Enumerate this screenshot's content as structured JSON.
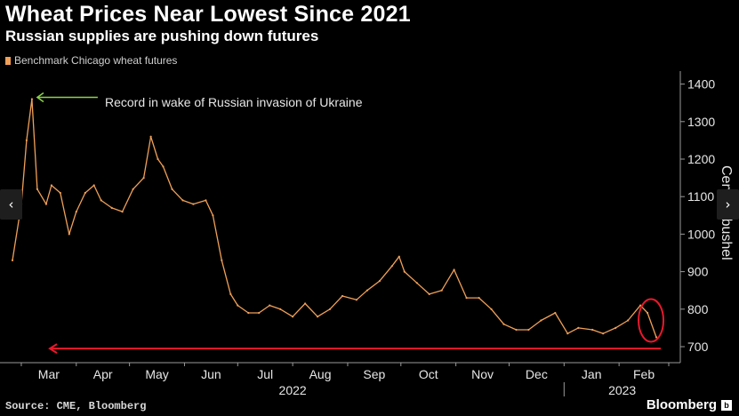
{
  "header": {
    "title": "Wheat Prices Near Lowest Since 2021",
    "subtitle": "Russian supplies are pushing down futures"
  },
  "legend": {
    "label": "Benchmark Chicago wheat futures",
    "color": "#f0a058"
  },
  "annotation": {
    "text": "Record in wake of Russian invasion of Ukraine",
    "arrow_color": "#8bd34a"
  },
  "highlight": {
    "color": "#e8192c"
  },
  "nav": {
    "prev_icon": "‹",
    "next_icon": "›"
  },
  "footer": {
    "source": "Source: CME, Bloomberg",
    "logo": "Bloomberg"
  },
  "chart_data": {
    "type": "line",
    "title": "Wheat Prices Near Lowest Since 2021",
    "subtitle": "Russian supplies are pushing down futures",
    "ylabel": "Cents a bushel",
    "ylim": [
      650,
      1430
    ],
    "y_ticks": [
      700,
      800,
      900,
      1000,
      1100,
      1200,
      1300,
      1400
    ],
    "x_ticks": [
      "Mar",
      "Apr",
      "May",
      "Jun",
      "Jul",
      "Aug",
      "Sep",
      "Oct",
      "Nov",
      "Dec",
      "Jan",
      "Feb"
    ],
    "year_labels": [
      "2022",
      "2023"
    ],
    "grid": false,
    "legend_position": "top-left",
    "series": [
      {
        "name": "Benchmark Chicago wheat futures",
        "color": "#f0a058",
        "x": [
          "2022-02-24",
          "2022-03-01",
          "2022-03-04",
          "2022-03-07",
          "2022-03-10",
          "2022-03-15",
          "2022-03-18",
          "2022-03-23",
          "2022-03-28",
          "2022-04-01",
          "2022-04-06",
          "2022-04-11",
          "2022-04-15",
          "2022-04-21",
          "2022-04-27",
          "2022-05-03",
          "2022-05-09",
          "2022-05-13",
          "2022-05-17",
          "2022-05-20",
          "2022-05-25",
          "2022-05-31",
          "2022-06-06",
          "2022-06-13",
          "2022-06-17",
          "2022-06-22",
          "2022-06-27",
          "2022-07-01",
          "2022-07-07",
          "2022-07-13",
          "2022-07-19",
          "2022-07-25",
          "2022-08-01",
          "2022-08-08",
          "2022-08-15",
          "2022-08-22",
          "2022-08-29",
          "2022-09-06",
          "2022-09-12",
          "2022-09-19",
          "2022-09-26",
          "2022-09-30",
          "2022-10-03",
          "2022-10-10",
          "2022-10-17",
          "2022-10-24",
          "2022-10-31",
          "2022-11-07",
          "2022-11-14",
          "2022-11-21",
          "2022-11-28",
          "2022-12-05",
          "2022-12-12",
          "2022-12-19",
          "2022-12-27",
          "2023-01-03",
          "2023-01-09",
          "2023-01-17",
          "2023-01-23",
          "2023-01-30",
          "2023-02-06",
          "2023-02-13",
          "2023-02-17",
          "2023-02-22"
        ],
        "values": [
          930,
          1080,
          1250,
          1360,
          1120,
          1080,
          1130,
          1110,
          1000,
          1060,
          1110,
          1130,
          1090,
          1070,
          1060,
          1120,
          1150,
          1260,
          1200,
          1180,
          1120,
          1090,
          1080,
          1090,
          1050,
          930,
          840,
          810,
          790,
          790,
          810,
          800,
          780,
          815,
          780,
          800,
          835,
          825,
          850,
          875,
          915,
          940,
          900,
          870,
          840,
          850,
          905,
          830,
          830,
          800,
          760,
          745,
          745,
          770,
          790,
          735,
          750,
          745,
          735,
          750,
          770,
          810,
          790,
          725
        ]
      }
    ]
  }
}
